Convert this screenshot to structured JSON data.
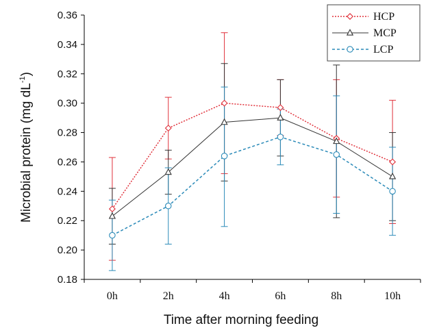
{
  "chart_data": {
    "type": "line",
    "xlabel": "Time after morning feeding",
    "ylabel_main": "Microbial protein (mg dL",
    "ylabel_sup": "-1",
    "ylabel_close": ")",
    "ylim": [
      0.18,
      0.36
    ],
    "yticks": [
      "0.18",
      "0.20",
      "0.22",
      "0.24",
      "0.26",
      "0.28",
      "0.30",
      "0.32",
      "0.34",
      "0.36"
    ],
    "categories": [
      "0h",
      "2h",
      "4h",
      "6h",
      "8h",
      "10h"
    ],
    "legend_position": "top-right",
    "grid": false,
    "series": [
      {
        "name": "HCP",
        "color": "#e0303a",
        "marker": "diamond",
        "line_style": "dotted",
        "values": [
          0.228,
          0.283,
          0.3,
          0.297,
          0.276,
          0.26
        ],
        "err_upper": [
          0.263,
          0.304,
          0.348,
          0.316,
          0.316,
          0.302
        ],
        "err_lower": [
          0.193,
          0.262,
          0.252,
          0.278,
          0.236,
          0.218
        ]
      },
      {
        "name": "MCP",
        "color": "#333333",
        "marker": "triangle",
        "line_style": "solid",
        "values": [
          0.223,
          0.253,
          0.287,
          0.29,
          0.274,
          0.25
        ],
        "err_upper": [
          0.242,
          0.268,
          0.327,
          0.316,
          0.326,
          0.28
        ],
        "err_lower": [
          0.204,
          0.238,
          0.247,
          0.264,
          0.222,
          0.22
        ]
      },
      {
        "name": "LCP",
        "color": "#2a8ab8",
        "marker": "circle",
        "line_style": "dashed",
        "values": [
          0.21,
          0.23,
          0.264,
          0.277,
          0.265,
          0.24
        ],
        "err_upper": [
          0.234,
          0.256,
          0.311,
          0.296,
          0.305,
          0.27
        ],
        "err_lower": [
          0.186,
          0.204,
          0.216,
          0.258,
          0.225,
          0.21
        ]
      }
    ]
  }
}
